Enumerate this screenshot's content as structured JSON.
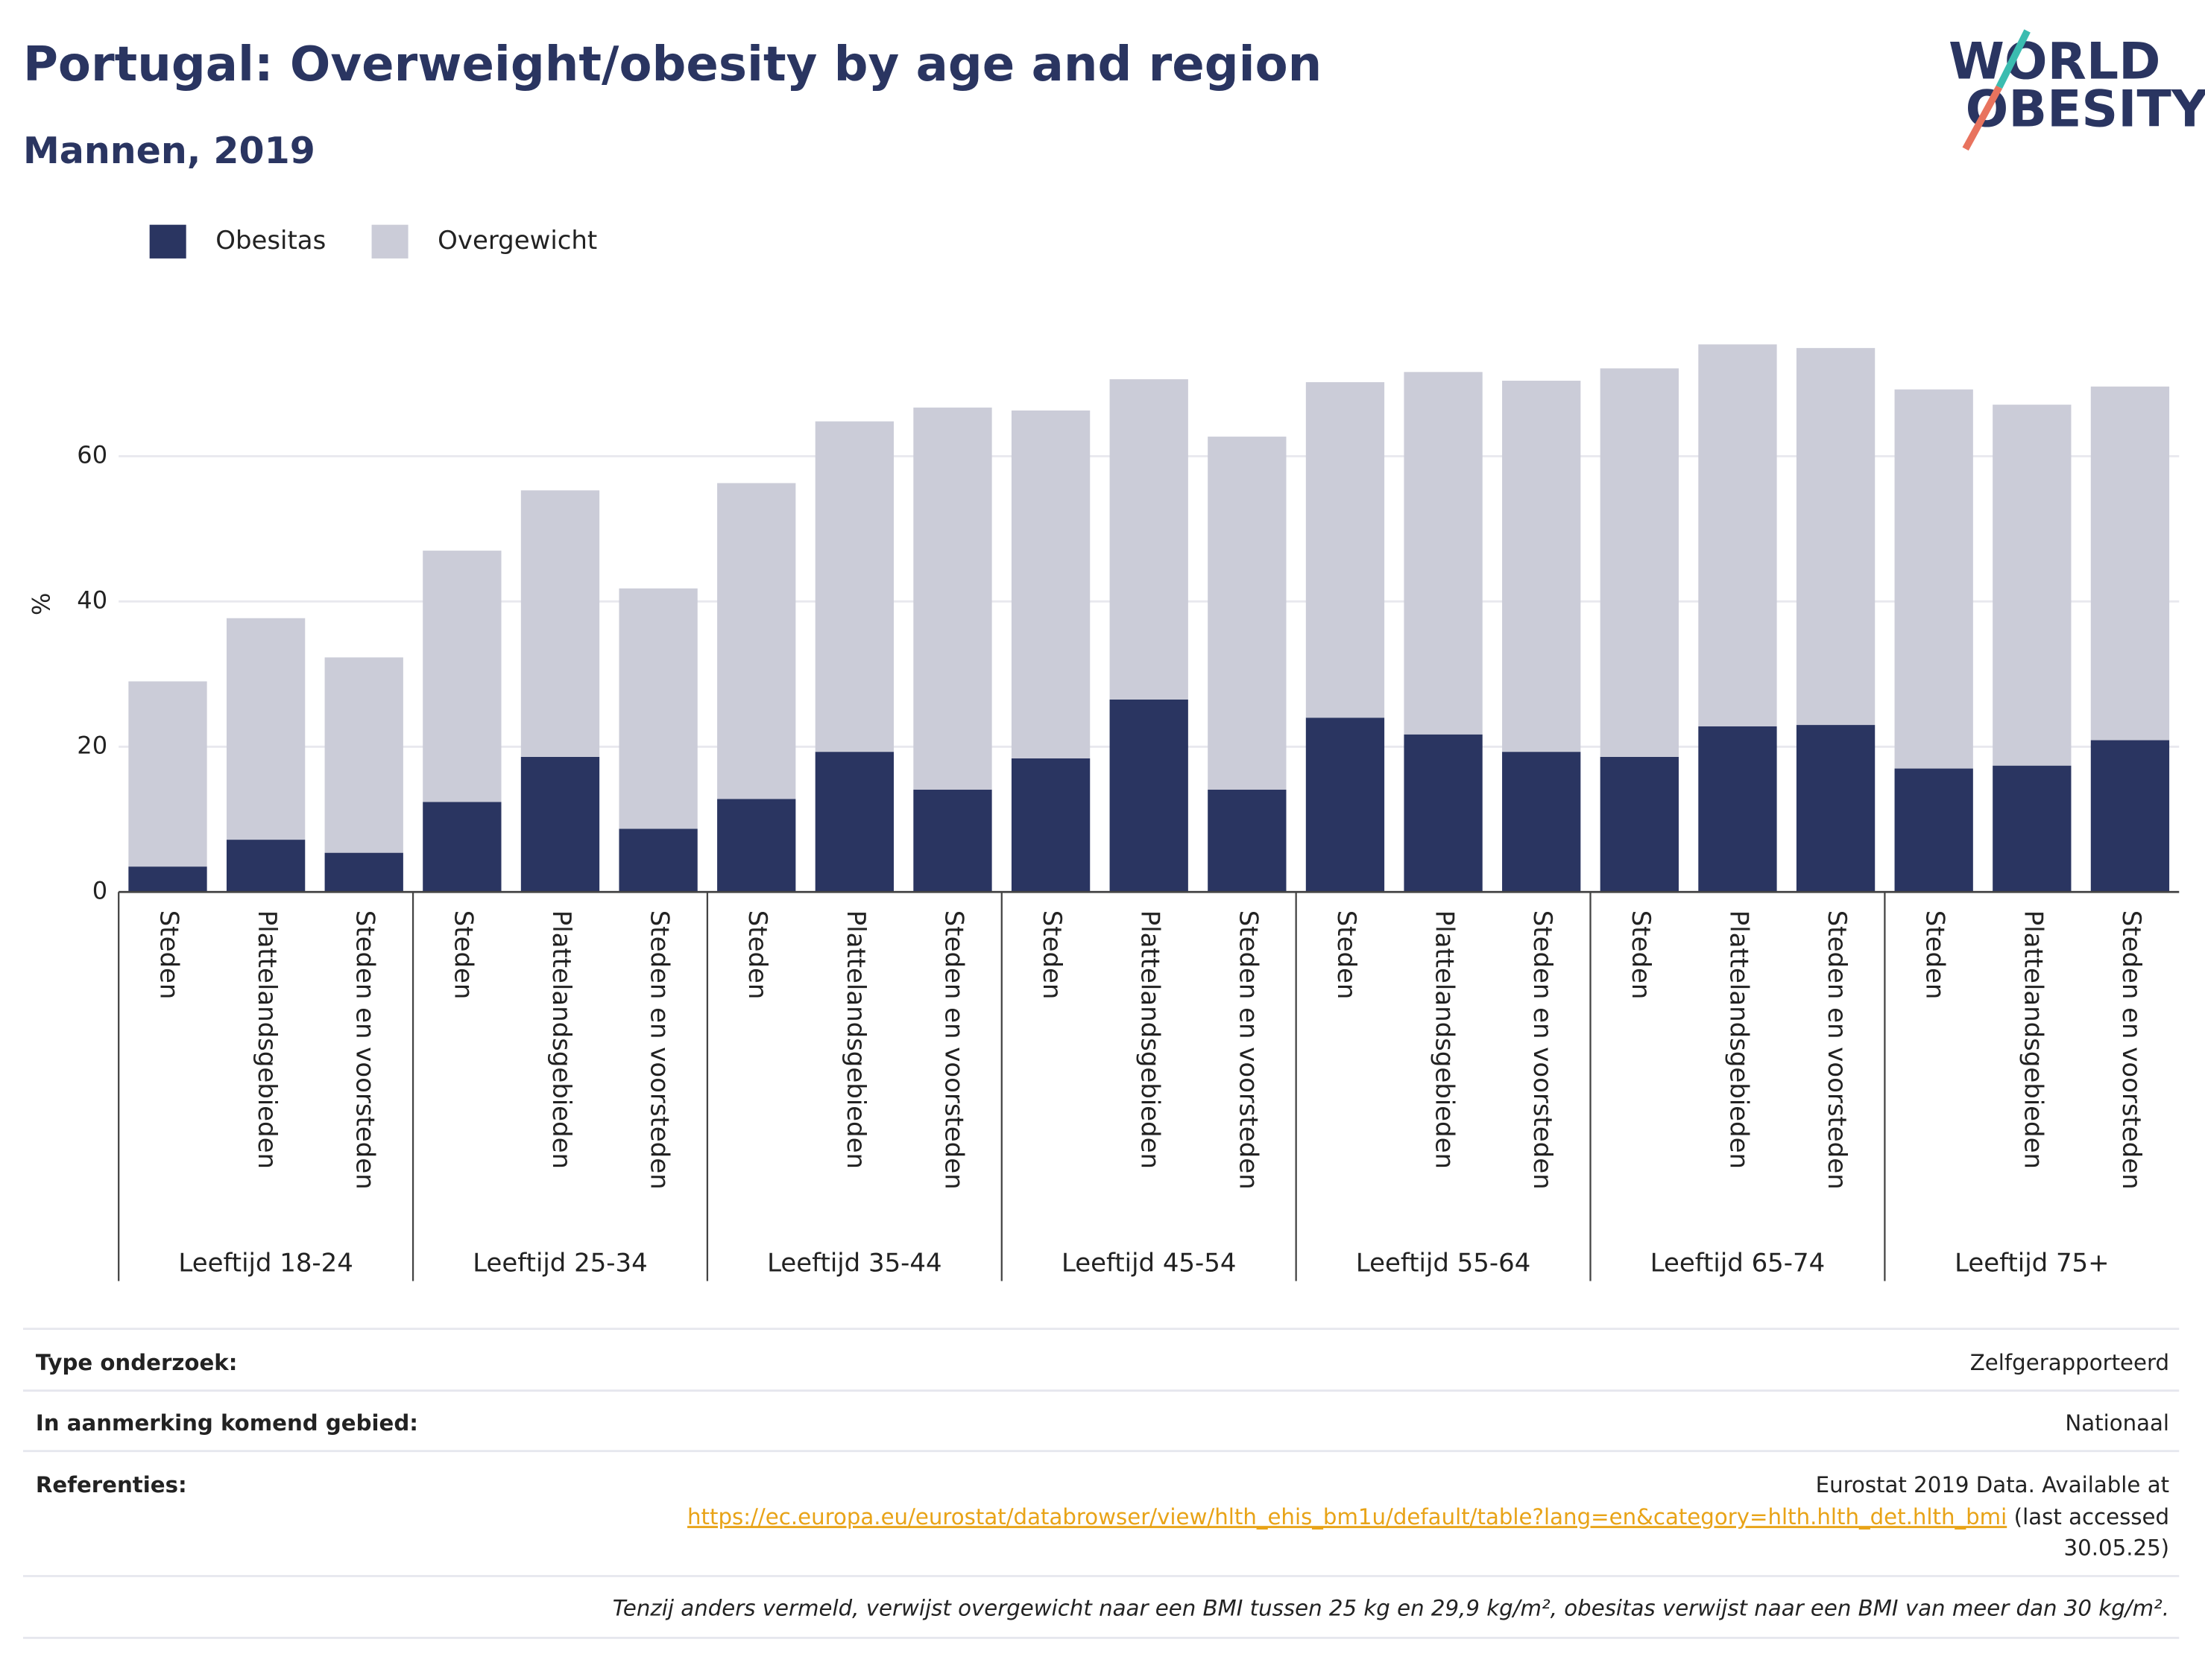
{
  "chart_data": {
    "type": "stacked_bar",
    "title": "Portugal: Overweight/obesity by age and region",
    "subtitle": "Mannen, 2019",
    "ylabel": "%",
    "categories": [
      "Steden",
      "Plattelandsgebieden",
      "Steden en voorsteden",
      "Steden",
      "Plattelandsgebieden",
      "Steden en voorsteden",
      "Steden",
      "Plattelandsgebieden",
      "Steden en voorsteden",
      "Steden",
      "Plattelandsgebieden",
      "Steden en voorsteden",
      "Steden",
      "Plattelandsgebieden",
      "Steden en voorsteden",
      "Steden",
      "Plattelandsgebieden",
      "Steden en voorsteden",
      "Steden",
      "Plattelandsgebieden",
      "Steden en voorsteden"
    ],
    "groups": [
      "Leeftijd 18-24",
      "Leeftijd 25-34",
      "Leeftijd 35-44",
      "Leeftijd 45-54",
      "Leeftijd 55-64",
      "Leeftijd 65-74",
      "Leeftijd 75+"
    ],
    "series": [
      {
        "name": "Obesitas",
        "color": "#2a3561",
        "values": [
          3.5,
          7.2,
          5.4,
          12.4,
          18.6,
          8.7,
          12.8,
          19.3,
          14.1,
          18.4,
          26.5,
          14.1,
          24.0,
          21.7,
          19.3,
          18.6,
          22.8,
          23.0,
          17.0,
          17.4,
          20.9
        ]
      },
      {
        "name": "Overgewicht",
        "color": "#cbccd8",
        "values": [
          25.5,
          30.5,
          26.9,
          34.6,
          36.7,
          33.1,
          43.5,
          45.5,
          52.6,
          47.9,
          44.1,
          48.6,
          46.2,
          49.9,
          51.1,
          53.5,
          52.6,
          51.9,
          52.2,
          49.7,
          48.7
        ]
      }
    ],
    "ylim": [
      0,
      79
    ],
    "yticks": [
      0,
      20,
      40,
      60
    ],
    "grid": true,
    "legend": "top-left"
  },
  "logo": [
    "WORLD",
    "OBESITY"
  ],
  "footer": {
    "rows": [
      {
        "label": "Type onderzoek:",
        "value": "Zelfgerapporteerd"
      },
      {
        "label": "In aanmerking komend gebied:",
        "value": "Nationaal"
      }
    ],
    "references": {
      "label": "Referenties:",
      "text": "Eurostat 2019 Data. Available at",
      "url": "https://ec.europa.eu/eurostat/databrowser/view/hlth_ehis_bm1u/default/table?lang=en&category=hlth.hlth_det.hlth_bmi",
      "note": [
        "(last accessed",
        "30.05.25)"
      ]
    },
    "footnote": "Tenzij anders vermeld, verwijst overgewicht naar een BMI tussen 25 kg en 29,9 kg/m², obesitas verwijst naar een BMI van meer dan 30 kg/m²."
  }
}
